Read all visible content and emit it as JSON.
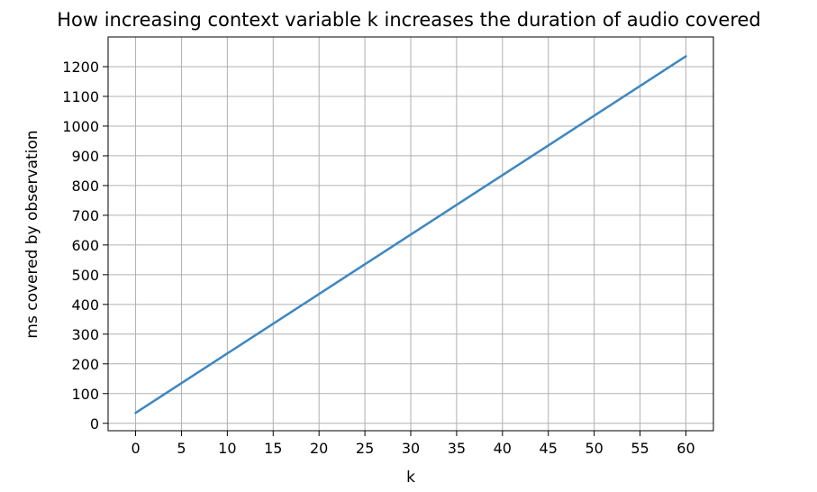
{
  "chart_data": {
    "type": "line",
    "title": "How increasing context variable k increases the duration of audio covered",
    "xlabel": "k",
    "ylabel": "ms covered by observation",
    "x_ticks": [
      0,
      5,
      10,
      15,
      20,
      25,
      30,
      35,
      40,
      45,
      50,
      55,
      60
    ],
    "y_ticks": [
      0,
      100,
      200,
      300,
      400,
      500,
      600,
      700,
      800,
      900,
      1000,
      1100,
      1200
    ],
    "xlim": [
      -3,
      63
    ],
    "ylim": [
      -25,
      1300
    ],
    "grid": true,
    "series": [
      {
        "color": "#3f87c0",
        "x": [
          0,
          60
        ],
        "y": [
          35,
          1235
        ]
      }
    ]
  }
}
